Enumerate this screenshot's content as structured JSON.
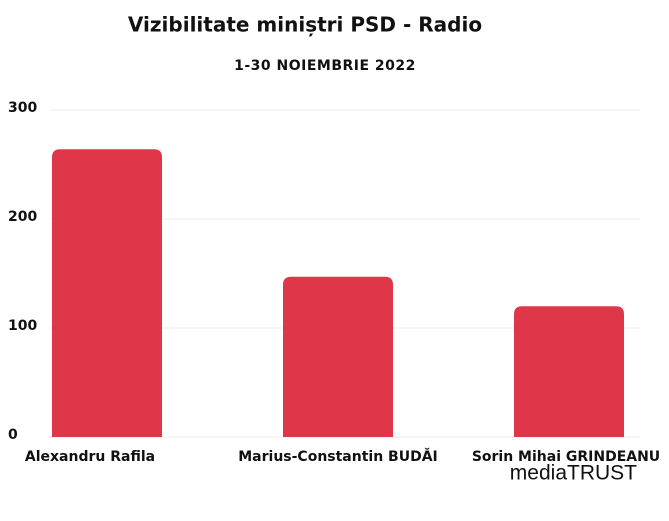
{
  "chart_data": {
    "type": "bar",
    "title": "Vizibilitate miniștri PSD - Radio",
    "subtitle": "1-30 NOIEMBRIE 2022",
    "categories": [
      "Alexandru Rafila",
      "Marius-Constantin BUDĂI",
      "Sorin Mihai GRINDEANU"
    ],
    "values": [
      264,
      147,
      120
    ],
    "color": "#e0364a",
    "ylim": [
      0,
      300
    ],
    "yticks": [
      0,
      100,
      200,
      300
    ],
    "grid": true,
    "logo": "mediaTRUST"
  }
}
